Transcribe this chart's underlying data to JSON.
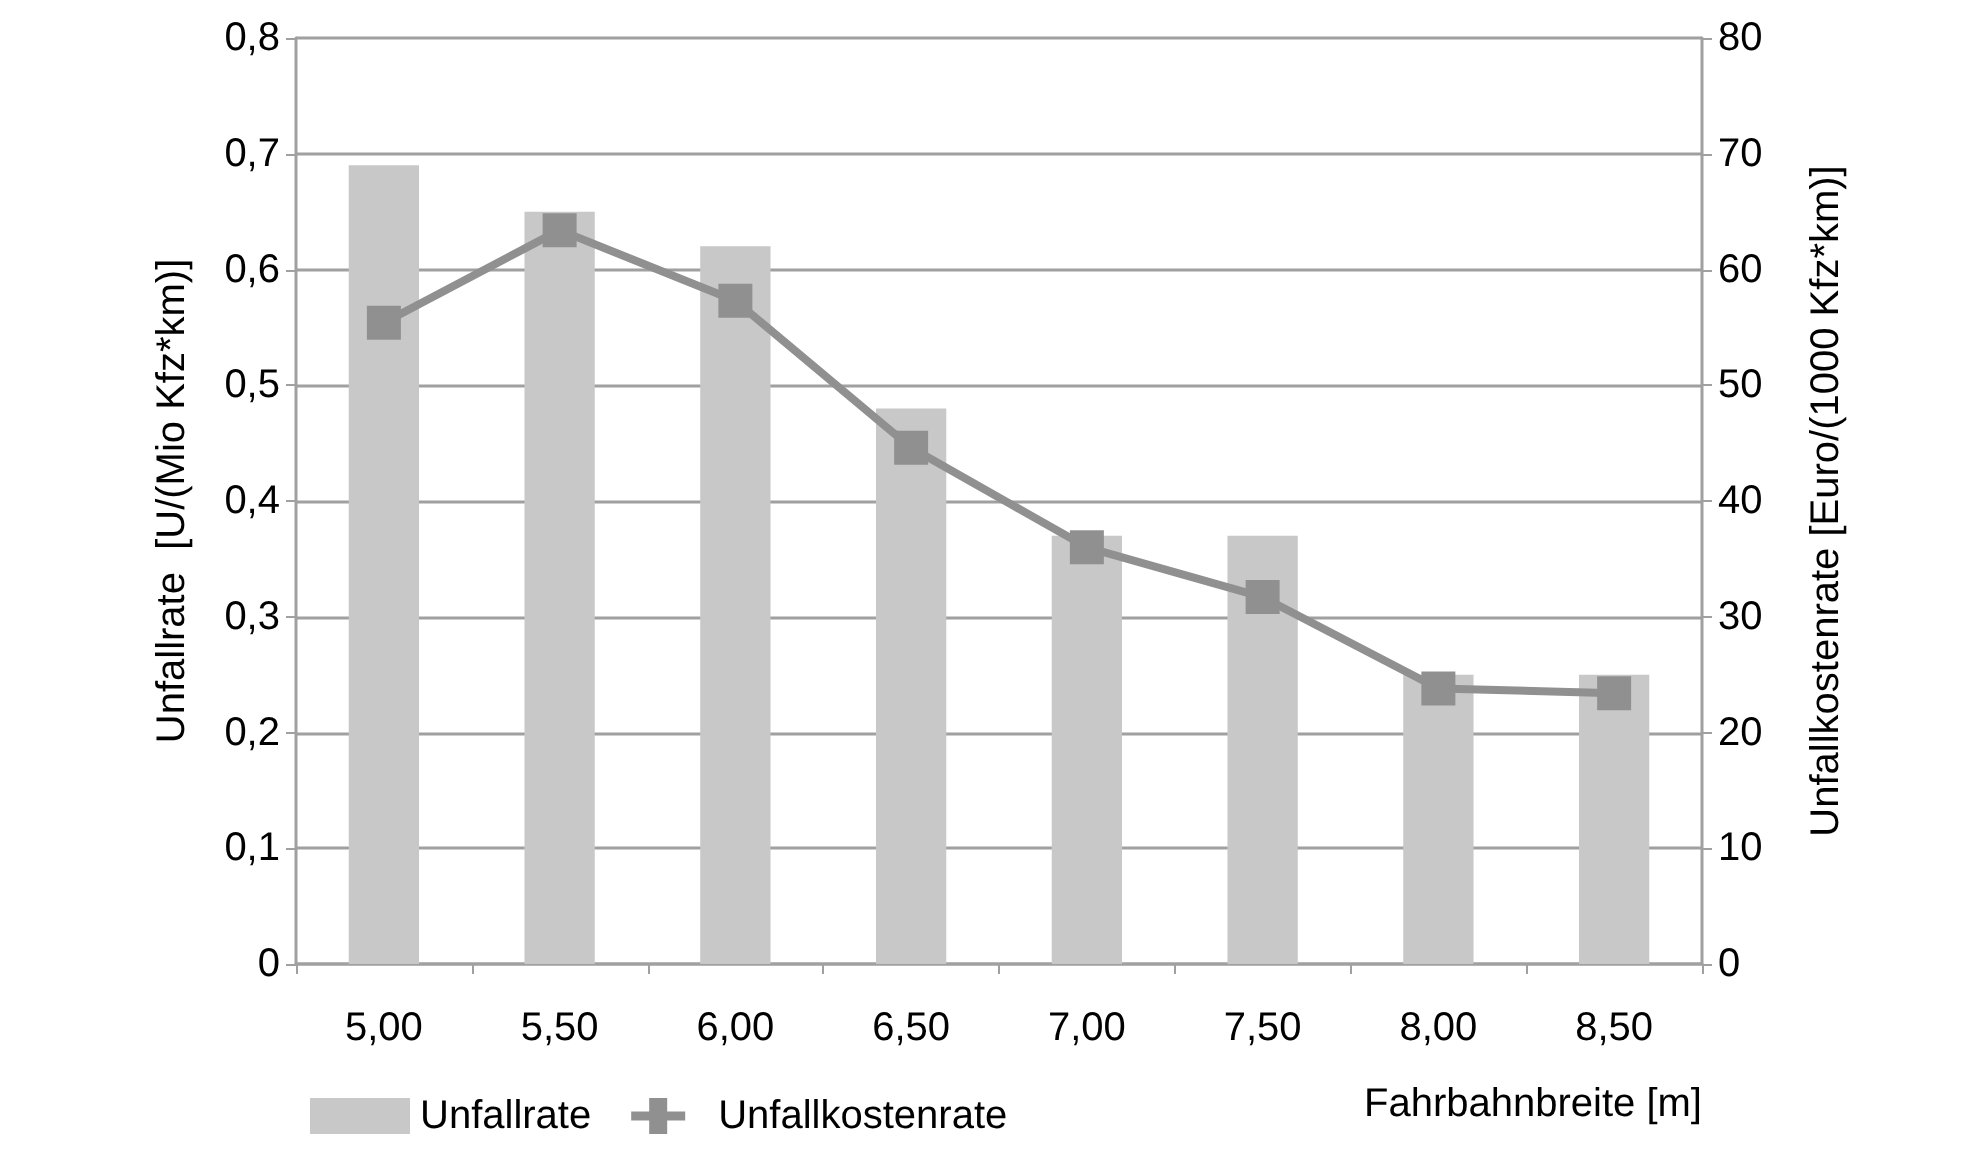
{
  "chart_data": {
    "type": "bar",
    "xlabel": "Fahrbahnbreite [m]",
    "ylabel": "Unfallrate  [U/(Mio Kfz*km)]",
    "y2label": "Unfallkostenrate [Euro/(1000 Kfz*km)]",
    "categories": [
      "5,00",
      "5,50",
      "6,00",
      "6,50",
      "7,00",
      "7,50",
      "8,00",
      "8,50"
    ],
    "series": [
      {
        "name": "Unfallrate",
        "color": "#c8c8c8",
        "values": [
          0.69,
          0.65,
          0.62,
          0.48,
          0.37,
          0.37,
          0.25,
          0.25
        ]
      },
      {
        "name": "Unfallkostenrate",
        "type": "line",
        "axis": "y2",
        "color": "#909090",
        "marker": "square",
        "values": [
          55.4,
          63.4,
          57.3,
          44.6,
          36,
          31.7,
          23.8,
          23.4
        ]
      }
    ],
    "ylim": [
      0,
      0.8
    ],
    "yticks": [
      {
        "value": 0,
        "label": "0"
      },
      {
        "value": 0.1,
        "label": "0,1"
      },
      {
        "value": 0.2,
        "label": "0,2"
      },
      {
        "value": 0.3,
        "label": "0,3"
      },
      {
        "value": 0.4,
        "label": "0,4"
      },
      {
        "value": 0.5,
        "label": "0,5"
      },
      {
        "value": 0.6,
        "label": "0,6"
      },
      {
        "value": 0.7,
        "label": "0,7"
      },
      {
        "value": 0.8,
        "label": "0,8"
      }
    ],
    "y2lim": [
      0,
      80
    ],
    "y2ticks": [
      0,
      10,
      20,
      30,
      40,
      50,
      60,
      70,
      80
    ],
    "grid": "y",
    "legend": "bottom left"
  }
}
